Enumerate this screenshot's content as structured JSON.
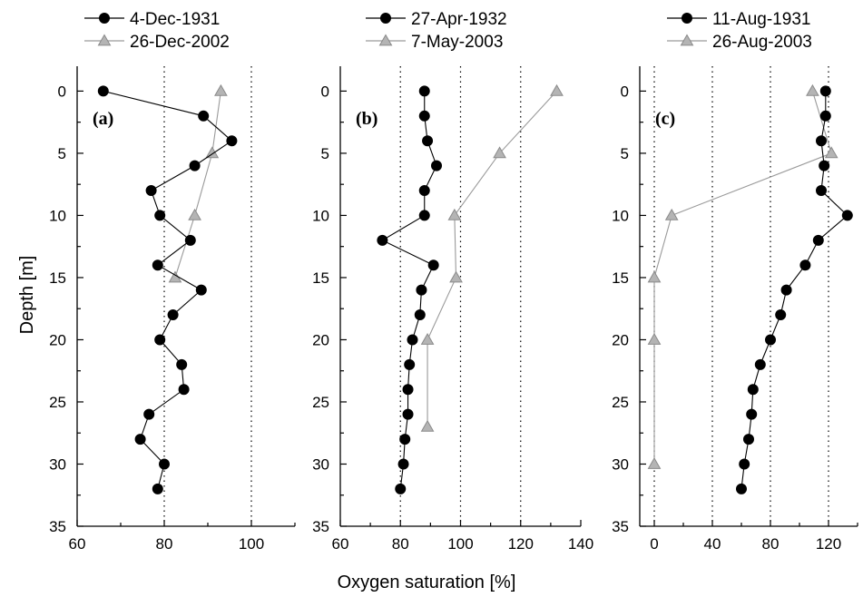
{
  "figure": {
    "shared_xlabel": "Oxygen saturation [%]",
    "shared_ylabel": "Depth [m]"
  },
  "colors": {
    "series_black": "#000000",
    "series_gray_fill": "#b4b4b4",
    "series_gray_line": "#9a9a9a",
    "axis": "#000000"
  },
  "chart_data": [
    {
      "type": "line",
      "panel": "(a)",
      "xlabel": "Oxygen saturation [%]",
      "ylabel": "Depth [m]",
      "xlim": [
        60,
        110
      ],
      "ylim": [
        35,
        -2
      ],
      "y_inverted": true,
      "xticks": [
        60,
        80,
        100
      ],
      "yticks": [
        0,
        5,
        10,
        15,
        20,
        25,
        30,
        35
      ],
      "reference_lines_x": [
        80,
        100
      ],
      "legend_position": "top",
      "series": [
        {
          "name": "4-Dec-1931",
          "marker": "circle",
          "color": "#000000",
          "points": [
            [
              66,
              0
            ],
            [
              89,
              2
            ],
            [
              95.5,
              4
            ],
            [
              87,
              6
            ],
            [
              77,
              8
            ],
            [
              79,
              10
            ],
            [
              86,
              12
            ],
            [
              78.5,
              14
            ],
            [
              88.5,
              16
            ],
            [
              82,
              18
            ],
            [
              79,
              20
            ],
            [
              84,
              22
            ],
            [
              84.5,
              24
            ],
            [
              76.5,
              26
            ],
            [
              74.5,
              28
            ],
            [
              80,
              30
            ],
            [
              78.5,
              32
            ]
          ]
        },
        {
          "name": "26-Dec-2002",
          "marker": "triangle",
          "color": "#b4b4b4",
          "points": [
            [
              93,
              0
            ],
            [
              91,
              5
            ],
            [
              87,
              10
            ],
            [
              82.5,
              15
            ]
          ]
        }
      ]
    },
    {
      "type": "line",
      "panel": "(b)",
      "xlabel": "Oxygen saturation [%]",
      "ylabel": "Depth [m]",
      "xlim": [
        60,
        140
      ],
      "ylim": [
        35,
        -2
      ],
      "y_inverted": true,
      "xticks": [
        60,
        80,
        100,
        120,
        140
      ],
      "yticks": [
        0,
        5,
        10,
        15,
        20,
        25,
        30,
        35
      ],
      "reference_lines_x": [
        80,
        100,
        120
      ],
      "legend_position": "top",
      "series": [
        {
          "name": "27-Apr-1932",
          "marker": "circle",
          "color": "#000000",
          "points": [
            [
              88,
              0
            ],
            [
              88,
              2
            ],
            [
              89,
              4
            ],
            [
              92,
              6
            ],
            [
              88,
              8
            ],
            [
              88,
              10
            ],
            [
              74,
              12
            ],
            [
              91,
              14
            ],
            [
              87,
              16
            ],
            [
              86.5,
              18
            ],
            [
              84,
              20
            ],
            [
              83,
              22
            ],
            [
              82.5,
              24
            ],
            [
              82.5,
              26
            ],
            [
              81.5,
              28
            ],
            [
              81,
              30
            ],
            [
              80,
              32
            ]
          ]
        },
        {
          "name": "7-May-2003",
          "marker": "triangle",
          "color": "#b4b4b4",
          "points": [
            [
              132,
              0
            ],
            [
              113,
              5
            ],
            [
              98,
              10
            ],
            [
              98.5,
              15
            ],
            [
              89,
              20
            ],
            [
              89,
              27
            ]
          ]
        }
      ]
    },
    {
      "type": "line",
      "panel": "(c)",
      "xlabel": "Oxygen saturation [%]",
      "ylabel": "Depth [m]",
      "xlim": [
        -10,
        140
      ],
      "ylim": [
        35,
        -2
      ],
      "y_inverted": true,
      "xticks": [
        0,
        40,
        80,
        120
      ],
      "yticks": [
        0,
        5,
        10,
        15,
        20,
        25,
        30,
        35
      ],
      "reference_lines_x": [
        0,
        40,
        80,
        120
      ],
      "legend_position": "top",
      "series": [
        {
          "name": "11-Aug-1931",
          "marker": "circle",
          "color": "#000000",
          "points": [
            [
              118,
              0
            ],
            [
              118,
              2
            ],
            [
              115,
              4
            ],
            [
              117,
              6
            ],
            [
              115,
              8
            ],
            [
              133,
              10
            ],
            [
              113,
              12
            ],
            [
              104,
              14
            ],
            [
              91,
              16
            ],
            [
              87,
              18
            ],
            [
              80,
              20
            ],
            [
              73,
              22
            ],
            [
              68,
              24
            ],
            [
              67,
              26
            ],
            [
              65,
              28
            ],
            [
              62,
              30
            ],
            [
              60,
              32
            ]
          ]
        },
        {
          "name": "26-Aug-2003",
          "marker": "triangle",
          "color": "#b4b4b4",
          "points": [
            [
              109,
              0
            ],
            [
              122,
              5
            ],
            [
              12,
              10
            ],
            [
              0,
              15
            ],
            [
              0,
              20
            ],
            [
              0,
              30
            ]
          ]
        }
      ]
    }
  ]
}
